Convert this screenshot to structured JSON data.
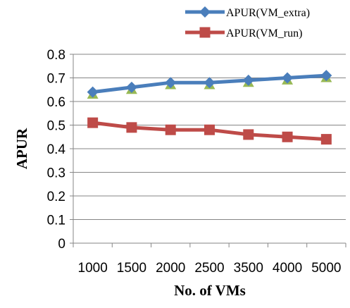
{
  "chart_data": {
    "type": "line",
    "categories": [
      "1000",
      "1500",
      "2000",
      "2500",
      "3500",
      "4000",
      "5000"
    ],
    "series": [
      {
        "name": "APUR(VM_extra)",
        "values": [
          0.64,
          0.66,
          0.68,
          0.68,
          0.69,
          0.7,
          0.71
        ],
        "color": "#4a7ebb",
        "marker": "diamond"
      },
      {
        "name": "APUR(VM_run)",
        "values": [
          0.51,
          0.49,
          0.48,
          0.48,
          0.46,
          0.45,
          0.44
        ],
        "color": "#be4b48",
        "marker": "square"
      },
      {
        "name": "",
        "values": [
          0.63,
          0.65,
          0.67,
          0.67,
          0.68,
          0.69,
          0.7
        ],
        "color": "#98b954",
        "marker": "triangle",
        "line": false
      }
    ],
    "title": "",
    "xlabel": "No. of VMs",
    "ylabel": "APUR",
    "ylim": [
      0,
      0.8
    ],
    "yticks": [
      "0",
      "0.1",
      "0.2",
      "0.3",
      "0.4",
      "0.5",
      "0.6",
      "0.7",
      "0.8"
    ],
    "grid": true,
    "legend_position": "top-right"
  }
}
